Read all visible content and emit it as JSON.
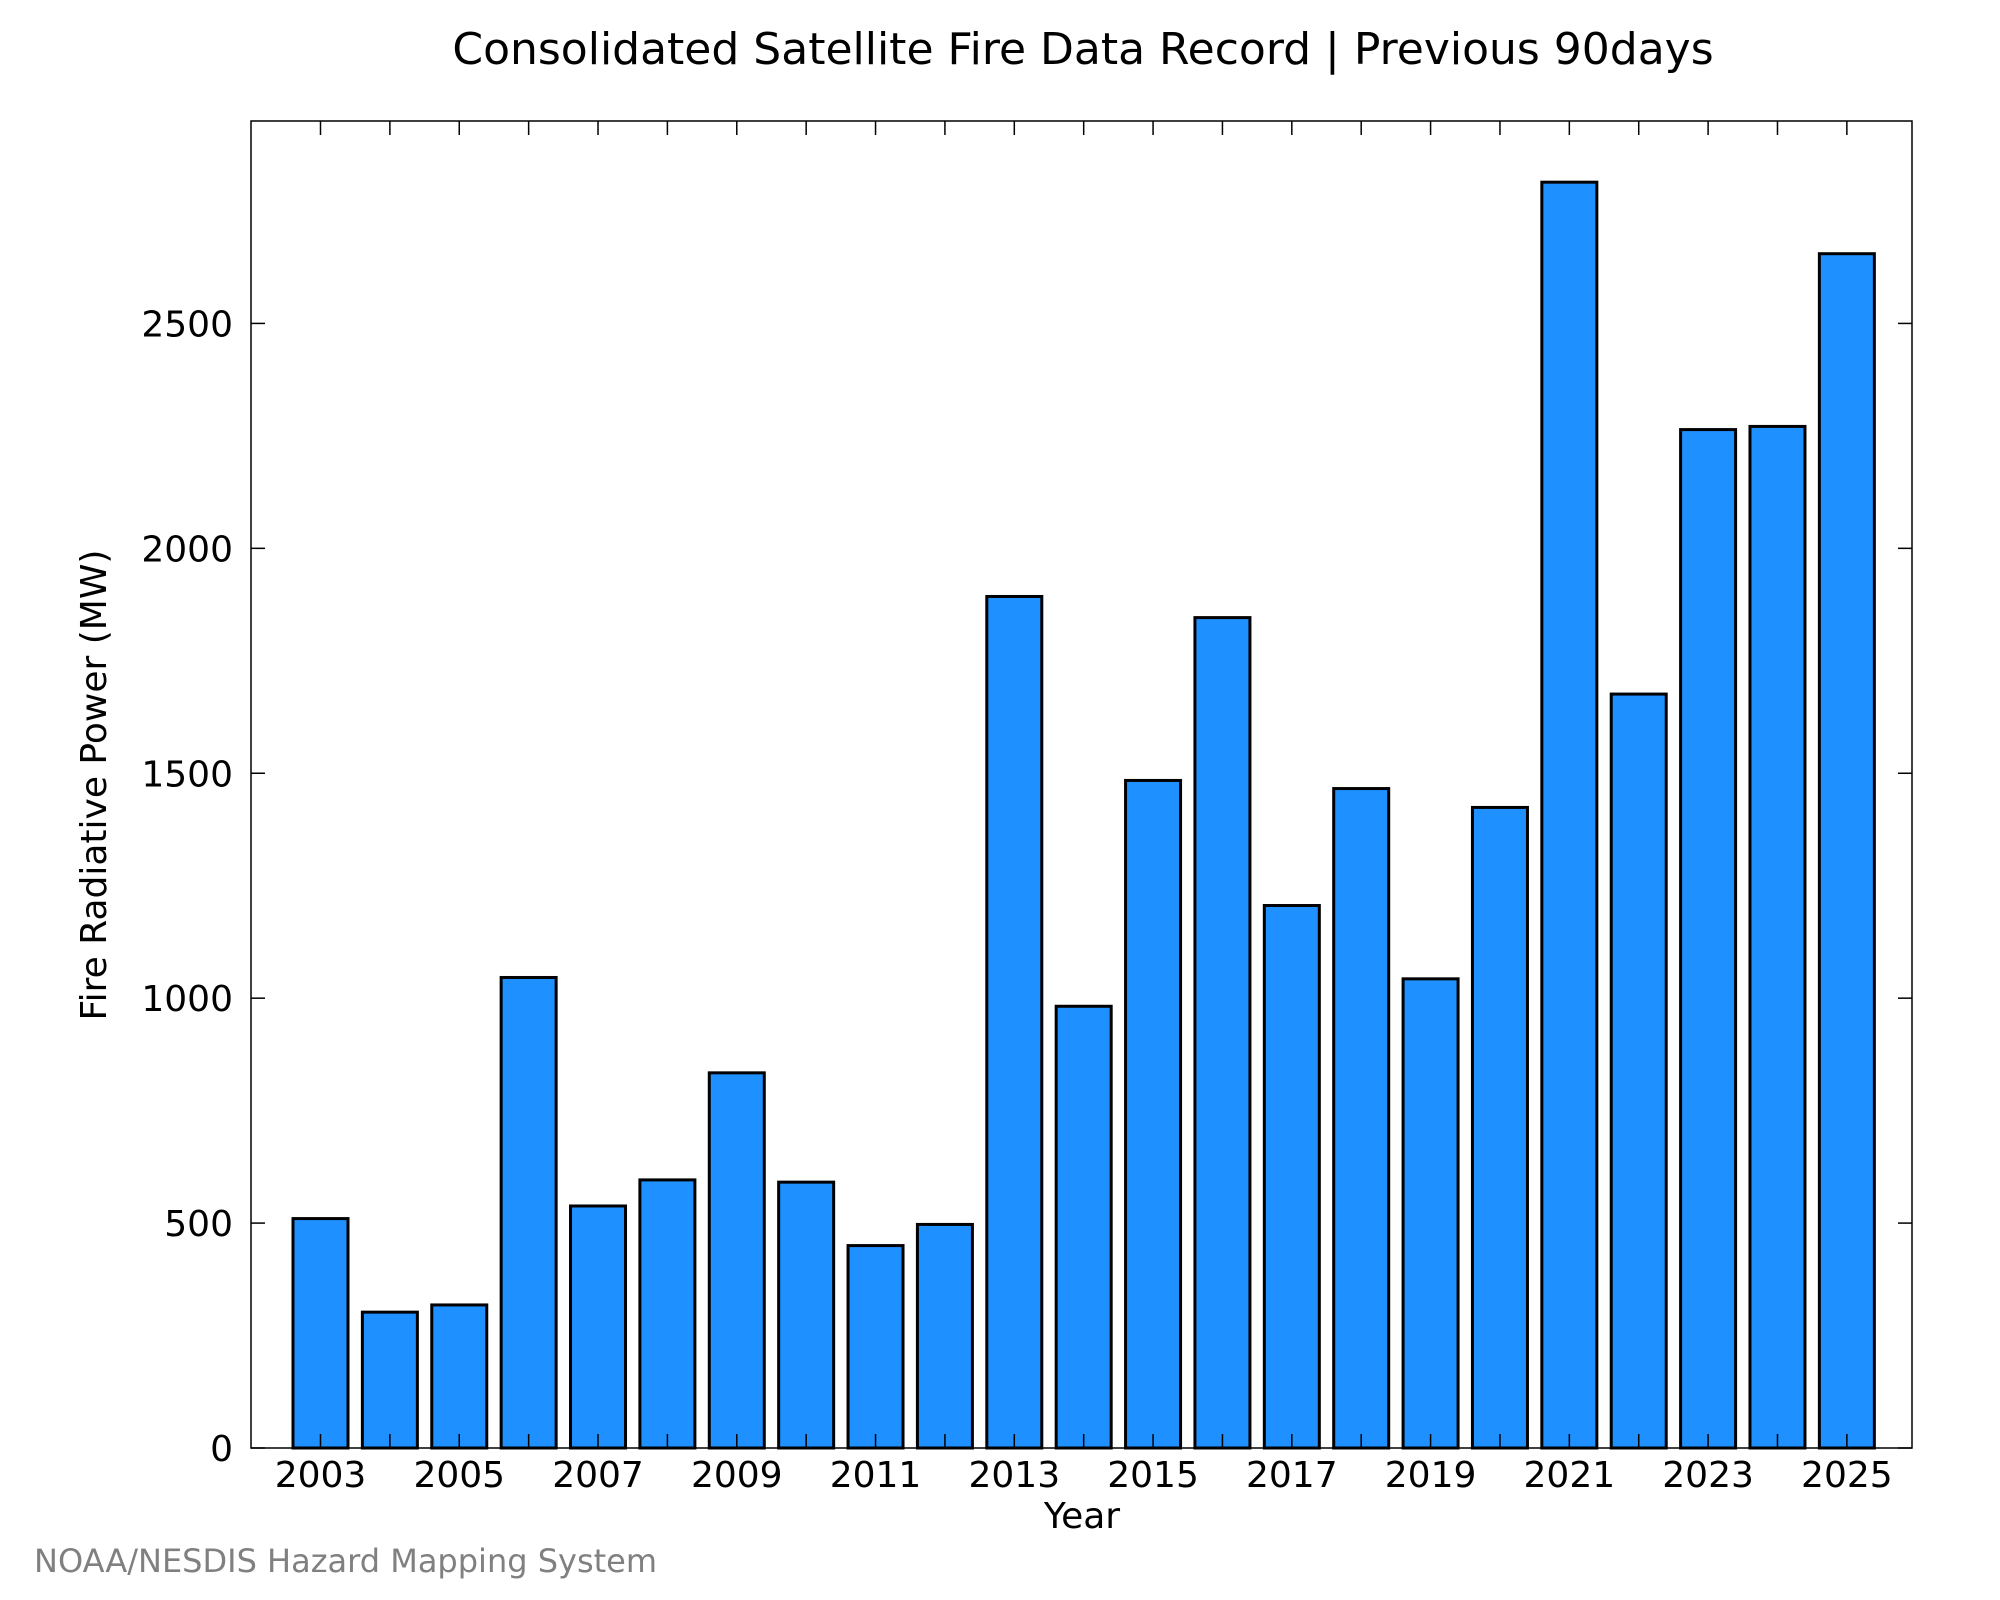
{
  "colors": {
    "bar_fill": "#1E90FF",
    "bar_stroke": "#000000",
    "axis": "#000000",
    "credit_text": "#808080"
  },
  "chart_data": {
    "type": "bar",
    "title": "Consolidated Satellite Fire Data Record | Previous 90days",
    "xlabel": "Year",
    "ylabel": "Fire Radiative Power (MW)",
    "categories": [
      "2003",
      "2004",
      "2005",
      "2006",
      "2007",
      "2008",
      "2009",
      "2010",
      "2011",
      "2012",
      "2013",
      "2014",
      "2015",
      "2016",
      "2017",
      "2018",
      "2019",
      "2020",
      "2021",
      "2022",
      "2023",
      "2024",
      "2025"
    ],
    "values": [
      510,
      302,
      318,
      1046,
      538,
      596,
      834,
      591,
      450,
      497,
      1893,
      982,
      1484,
      1846,
      1206,
      1466,
      1043,
      1424,
      2814,
      1676,
      2264,
      2271,
      2655
    ],
    "xticks": [
      "2003",
      "2005",
      "2007",
      "2009",
      "2011",
      "2013",
      "2015",
      "2017",
      "2019",
      "2021",
      "2023",
      "2025"
    ],
    "yticks": [
      0,
      500,
      1000,
      1500,
      2000,
      2500
    ],
    "ylim": [
      0,
      2950
    ],
    "grid": false,
    "legend": "none"
  },
  "credit": "NOAA/NESDIS Hazard Mapping System"
}
